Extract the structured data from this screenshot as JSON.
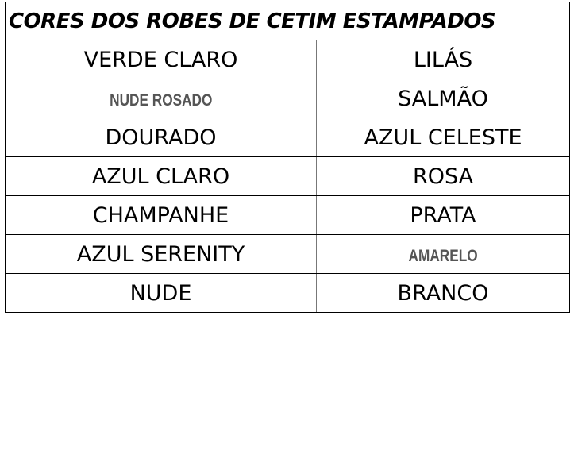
{
  "title": "CORES DOS ROBES DE CETIM ESTAMPADOS",
  "rows": [
    {
      "left": "VERDE CLARO",
      "right": "LILÁS"
    },
    {
      "left": "NUDE ROSADO",
      "right": "SALMÃO"
    },
    {
      "left": "DOURADO",
      "right": "AZUL CELESTE"
    },
    {
      "left": "AZUL CLARO",
      "right": "ROSA"
    },
    {
      "left": "CHAMPANHE",
      "right": "PRATA"
    },
    {
      "left": "AZUL SERENITY",
      "right": "AMARELO"
    },
    {
      "left": "NUDE",
      "right": "BRANCO"
    }
  ]
}
